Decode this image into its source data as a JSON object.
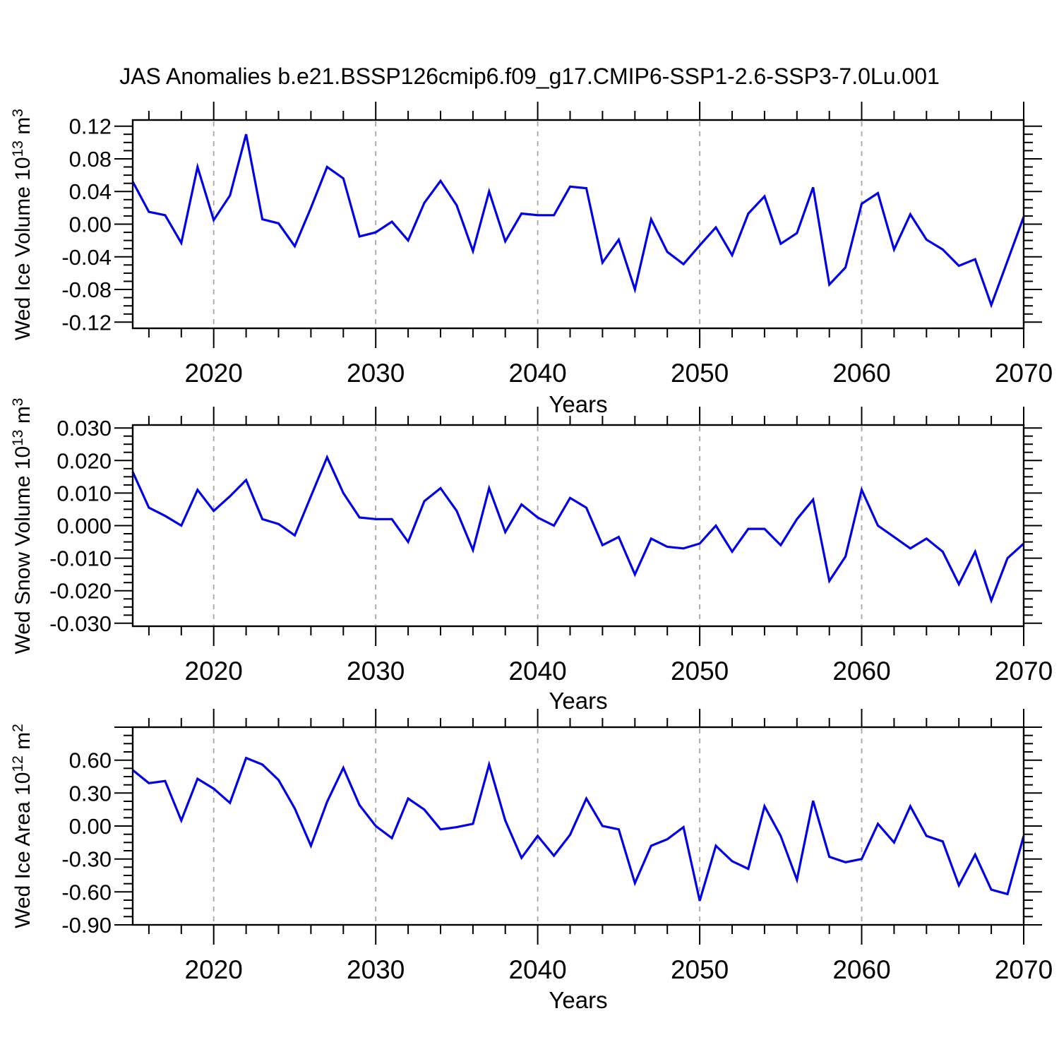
{
  "title": "JAS Anomalies b.e21.BSSP126cmip6.f09_g17.CMIP6-SSP1-2.6-SSP3-7.0Lu.001",
  "colors": {
    "line": "#0000e8",
    "grid": "#a6a6a6",
    "axis": "#000000"
  },
  "chart_data": {
    "type": "line",
    "title": "JAS Anomalies b.e21.BSSP126cmip6.f09_g17.CMIP6-SSP1-2.6-SSP3-7.0Lu.001",
    "xlabel": "Years",
    "x": [
      2015,
      2016,
      2017,
      2018,
      2019,
      2020,
      2021,
      2022,
      2023,
      2024,
      2025,
      2026,
      2027,
      2028,
      2029,
      2030,
      2031,
      2032,
      2033,
      2034,
      2035,
      2036,
      2037,
      2038,
      2039,
      2040,
      2041,
      2042,
      2043,
      2044,
      2045,
      2046,
      2047,
      2048,
      2049,
      2050,
      2051,
      2052,
      2053,
      2054,
      2055,
      2056,
      2057,
      2058,
      2059,
      2060,
      2061,
      2062,
      2063,
      2064,
      2065,
      2066,
      2067,
      2068,
      2069,
      2070
    ],
    "xlim": [
      2015,
      2070
    ],
    "xticks": [
      2020,
      2030,
      2040,
      2050,
      2060,
      2070
    ],
    "x_minor_step": 2,
    "gridline_years": [
      2020,
      2030,
      2040,
      2050,
      2060
    ],
    "grid_style": "dashed-vertical",
    "legend": "none",
    "panels": [
      {
        "id": "wed-ice-volume",
        "ylabel": "Wed Ice Volume 10^13 m^3",
        "ylabel_parts": [
          "Wed Ice Volume 10",
          "13",
          " m",
          "3"
        ],
        "ylim": [
          -0.1275,
          0.1275
        ],
        "ymajor_step": 0.04,
        "yticks": [
          0.12,
          0.08,
          0.04,
          0.0,
          -0.04,
          -0.08,
          -0.12
        ],
        "ytick_labels": [
          "0.12",
          "0.08",
          "0.04",
          "0.00",
          "-0.04",
          "-0.08",
          "-0.12"
        ],
        "values": [
          0.052,
          0.015,
          0.011,
          -0.023,
          0.07,
          0.005,
          0.035,
          0.11,
          0.006,
          0.001,
          -0.027,
          0.02,
          0.07,
          0.056,
          -0.015,
          -0.01,
          0.003,
          -0.02,
          0.026,
          0.053,
          0.023,
          -0.033,
          0.04,
          -0.021,
          0.013,
          0.011,
          0.011,
          0.046,
          0.044,
          -0.047,
          -0.019,
          -0.08,
          0.006,
          -0.034,
          -0.049,
          -0.026,
          -0.004,
          -0.038,
          0.013,
          0.034,
          -0.024,
          -0.011,
          0.045,
          -0.074,
          -0.053,
          0.025,
          0.038,
          -0.031,
          0.012,
          -0.019,
          -0.031,
          -0.051,
          -0.043,
          -0.099,
          -0.045,
          0.009
        ]
      },
      {
        "id": "wed-snow-volume",
        "ylabel": "Wed Snow Volume 10^13 m^3",
        "ylabel_parts": [
          "Wed Snow Volume 10",
          "13",
          " m",
          "3"
        ],
        "ylim": [
          -0.0309,
          0.0309
        ],
        "ymajor_step": 0.01,
        "yticks": [
          0.03,
          0.02,
          0.01,
          0.0,
          -0.01,
          -0.02,
          -0.03
        ],
        "ytick_labels": [
          "0.030",
          "0.020",
          "0.010",
          "0.000",
          "-0.010",
          "-0.020",
          "-0.030"
        ],
        "values": [
          0.0165,
          0.0055,
          0.003,
          0.0,
          0.011,
          0.0045,
          0.009,
          0.014,
          0.002,
          0.0005,
          -0.003,
          0.009,
          0.021,
          0.01,
          0.0025,
          0.002,
          0.002,
          -0.005,
          0.0075,
          0.0115,
          0.0045,
          -0.0075,
          0.0115,
          -0.002,
          0.0065,
          0.0025,
          0.0,
          0.0085,
          0.0055,
          -0.006,
          -0.0035,
          -0.015,
          -0.004,
          -0.0065,
          -0.007,
          -0.0055,
          0.0,
          -0.008,
          -0.001,
          -0.001,
          -0.006,
          0.002,
          0.008,
          -0.017,
          -0.0095,
          0.011,
          0.0,
          -0.0035,
          -0.007,
          -0.004,
          -0.008,
          -0.018,
          -0.008,
          -0.023,
          -0.01,
          -0.0055
        ]
      },
      {
        "id": "wed-ice-area",
        "ylabel": "Wed Ice Area 10^12 m^2",
        "ylabel_parts": [
          "Wed Ice Area 10",
          "12",
          " m",
          "2"
        ],
        "ylim": [
          -0.9,
          0.9
        ],
        "ymajor_step": 0.3,
        "yticks": [
          0.6,
          0.3,
          0.0,
          -0.3,
          -0.6,
          -0.9
        ],
        "ytick_labels": [
          "0.60",
          "0.30",
          "0.00",
          "-0.30",
          "-0.60",
          "-0.90"
        ],
        "values": [
          0.51,
          0.39,
          0.41,
          0.05,
          0.43,
          0.34,
          0.21,
          0.62,
          0.56,
          0.42,
          0.16,
          -0.18,
          0.22,
          0.53,
          0.19,
          0.0,
          -0.11,
          0.25,
          0.15,
          -0.03,
          -0.01,
          0.02,
          0.56,
          0.05,
          -0.29,
          -0.09,
          -0.27,
          -0.08,
          0.25,
          0.0,
          -0.03,
          -0.52,
          -0.18,
          -0.12,
          -0.01,
          -0.68,
          -0.18,
          -0.32,
          -0.39,
          0.18,
          -0.09,
          -0.49,
          0.23,
          -0.28,
          -0.33,
          -0.3,
          0.02,
          -0.15,
          0.18,
          -0.09,
          -0.14,
          -0.54,
          -0.26,
          -0.58,
          -0.62,
          -0.09
        ]
      }
    ]
  }
}
